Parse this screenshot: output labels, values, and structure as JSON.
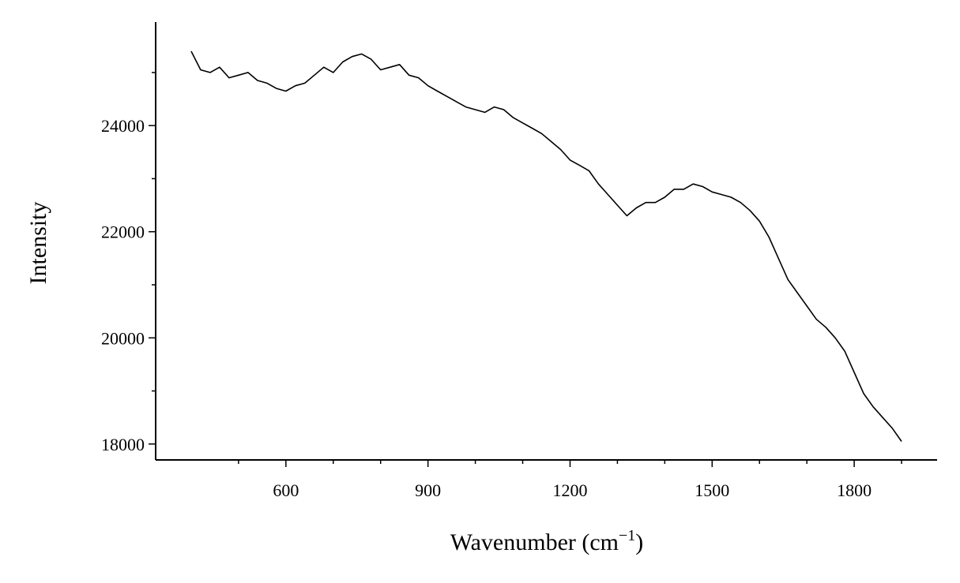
{
  "chart_data": {
    "type": "line",
    "title": "",
    "xlabel": "Wavenumber (cm",
    "xlabel_sup": "−1",
    "xlabel_close": ")",
    "ylabel": "Intensity",
    "xlim": [
      325,
      1975
    ],
    "ylim": [
      17700,
      25950
    ],
    "xticks": [
      600,
      900,
      1200,
      1500,
      1800
    ],
    "xtick_labels": [
      "600",
      "900",
      "1200",
      "1500",
      "1800"
    ],
    "yticks": [
      18000,
      20000,
      22000,
      24000
    ],
    "ytick_labels": [
      "18000",
      "20000",
      "22000",
      "24000"
    ],
    "grid": false,
    "line_color": "#000000",
    "series": [
      {
        "x": [
          400,
          420,
          440,
          460,
          480,
          500,
          520,
          540,
          560,
          580,
          600,
          620,
          640,
          660,
          680,
          700,
          720,
          740,
          760,
          780,
          800,
          820,
          840,
          860,
          880,
          900,
          920,
          940,
          960,
          980,
          1000,
          1020,
          1040,
          1060,
          1080,
          1100,
          1120,
          1140,
          1160,
          1180,
          1200,
          1220,
          1240,
          1260,
          1280,
          1300,
          1320,
          1340,
          1360,
          1380,
          1400,
          1420,
          1440,
          1460,
          1480,
          1500,
          1520,
          1540,
          1560,
          1580,
          1600,
          1620,
          1640,
          1660,
          1680,
          1700,
          1720,
          1740,
          1760,
          1780,
          1800,
          1820,
          1840,
          1860,
          1880,
          1900
        ],
        "values": [
          25400,
          25050,
          25000,
          25100,
          24900,
          24950,
          25000,
          24850,
          24800,
          24700,
          24650,
          24750,
          24800,
          24950,
          25100,
          25000,
          25200,
          25300,
          25350,
          25250,
          25050,
          25100,
          25150,
          24950,
          24900,
          24750,
          24650,
          24550,
          24450,
          24350,
          24300,
          24250,
          24350,
          24300,
          24150,
          24050,
          23950,
          23850,
          23700,
          23550,
          23350,
          23250,
          23150,
          22900,
          22700,
          22500,
          22300,
          22450,
          22550,
          22550,
          22650,
          22800,
          22800,
          22900,
          22850,
          22750,
          22700,
          22650,
          22550,
          22400,
          22200,
          21900,
          21500,
          21100,
          20850,
          20600,
          20350,
          20200,
          20000,
          19750,
          19350,
          18950,
          18700,
          18500,
          18300,
          18050
        ]
      }
    ]
  }
}
